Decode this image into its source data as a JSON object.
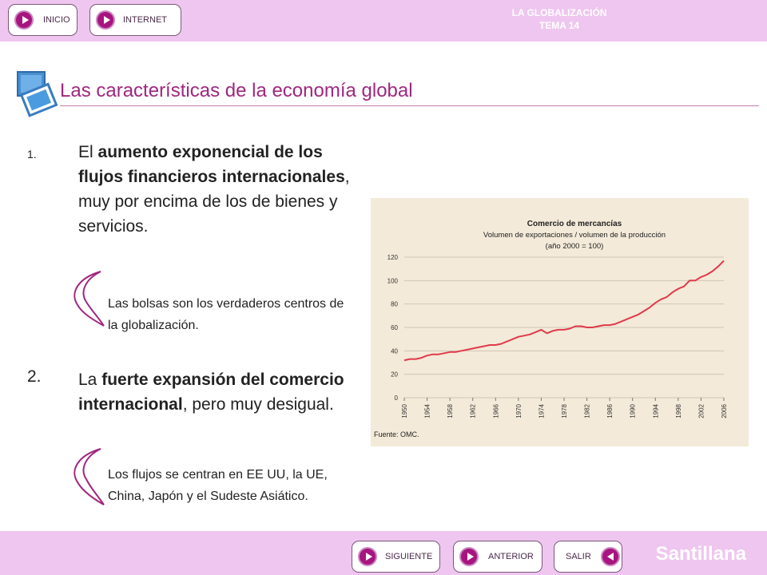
{
  "header": {
    "title_line1": "LA GLOBALIZACIÓN",
    "title_line2": "TEMA 14"
  },
  "top_nav": {
    "inicio_label": "INICIO",
    "internet_label": "INTERNET"
  },
  "bottom_nav": {
    "siguiente_label": "SIGUIENTE",
    "anterior_label": "ANTERIOR",
    "salir_label": "SALIR"
  },
  "brand": "Santillana",
  "slide_title": "Las características de la economía global",
  "points": [
    {
      "number": "1.",
      "pre": "El ",
      "bold": "aumento exponencial de los flujos financieros internacionales",
      "post": ", muy por encima de los de bienes y servicios.",
      "note": "Las bolsas son los verdaderos centros de la globalización."
    },
    {
      "number": "2.",
      "pre": "La ",
      "bold": "fuerte expansión del comercio internacional",
      "post": ", pero muy desigual.",
      "note": "Los flujos se centran en EE UU, la UE, China, Japón y el Sudeste Asiático."
    }
  ],
  "colors": {
    "accent": "#a0277f",
    "bar": "#efc6ef",
    "series": "#e03a4a"
  },
  "chart_data": {
    "type": "line",
    "title": "Comercio de mercancías",
    "subtitle_line1": "Volumen de exportaciones / volumen de la producción",
    "subtitle_line2": "(año 2000 = 100)",
    "source": "Fuente: OMC.",
    "xlabel": "",
    "ylabel": "",
    "ylim": [
      0,
      120
    ],
    "xlim": [
      1950,
      2006
    ],
    "y_ticks": [
      0,
      20,
      40,
      60,
      80,
      100,
      120
    ],
    "x_ticks": [
      "1950",
      "1954",
      "1958",
      "1962",
      "1966",
      "1970",
      "1974",
      "1978",
      "1982",
      "1986",
      "1990",
      "1994",
      "1998",
      "2002",
      "2006"
    ],
    "grid": true,
    "legend": "none",
    "series": [
      {
        "x": [
          1950,
          1951,
          1952,
          1953,
          1954,
          1955,
          1956,
          1957,
          1958,
          1959,
          1960,
          1961,
          1962,
          1963,
          1964,
          1965,
          1966,
          1967,
          1968,
          1969,
          1970,
          1971,
          1972,
          1973,
          1974,
          1975,
          1976,
          1977,
          1978,
          1979,
          1980,
          1981,
          1982,
          1983,
          1984,
          1985,
          1986,
          1987,
          1988,
          1989,
          1990,
          1991,
          1992,
          1993,
          1994,
          1995,
          1996,
          1997,
          1998,
          1999,
          2000,
          2001,
          2002,
          2003,
          2004,
          2005,
          2006
        ],
        "values": [
          32,
          33,
          33,
          34,
          36,
          37,
          37,
          38,
          39,
          39,
          40,
          41,
          42,
          43,
          44,
          45,
          45,
          46,
          48,
          50,
          52,
          53,
          54,
          56,
          58,
          55,
          57,
          58,
          58,
          59,
          61,
          61,
          60,
          60,
          61,
          62,
          62,
          63,
          65,
          67,
          69,
          71,
          74,
          77,
          81,
          84,
          86,
          90,
          93,
          95,
          100,
          100,
          103,
          105,
          108,
          112,
          117
        ]
      }
    ]
  }
}
